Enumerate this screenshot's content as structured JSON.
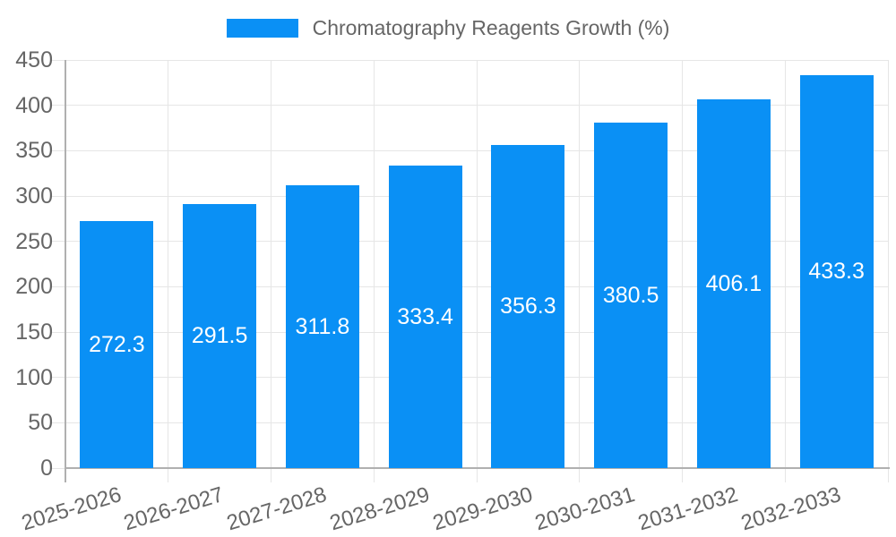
{
  "legend": {
    "label": "Chromatography Reagents Growth (%)"
  },
  "chart_data": {
    "type": "bar",
    "title": "Chromatography Reagents Growth (%)",
    "categories": [
      "2025-2026",
      "2026-2027",
      "2027-2028",
      "2028-2029",
      "2029-2030",
      "2030-2031",
      "2031-2032",
      "2032-2033"
    ],
    "series": [
      {
        "name": "Chromatography Reagents Growth (%)",
        "values": [
          272.3,
          291.5,
          311.8,
          333.4,
          356.3,
          380.5,
          406.1,
          433.3
        ]
      }
    ],
    "value_labels": [
      "272.3",
      "291.5",
      "311.8",
      "333.4",
      "356.3",
      "380.5",
      "406.1",
      "433.3"
    ],
    "xlabel": "",
    "ylabel": "",
    "ylim": [
      0,
      450
    ],
    "ytick_step": 50,
    "yticks": [
      0,
      50,
      100,
      150,
      200,
      250,
      300,
      350,
      400,
      450
    ],
    "grid": true,
    "legend_position": "top-center",
    "colors": {
      "bar": "#0a90f5",
      "grid": "#e6e6e6",
      "axis": "#b0b0b0",
      "text": "#666666",
      "value_label": "#ffffff"
    }
  }
}
